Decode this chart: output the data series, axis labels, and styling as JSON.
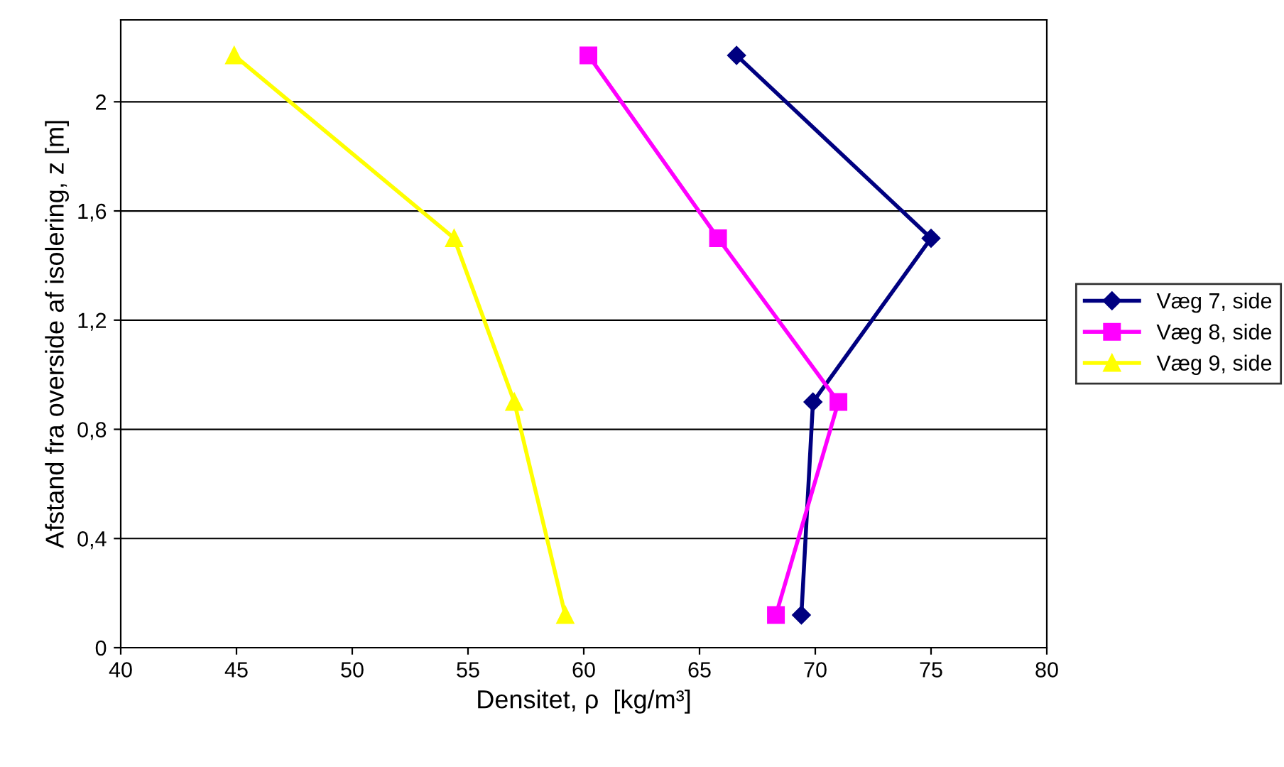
{
  "chart_data": {
    "type": "line",
    "xlabel": "Densitet, ρ  [kg/m³]",
    "ylabel": "Afstand fra overside af isolering, z [m]",
    "xlim": [
      40,
      80
    ],
    "xticks": [
      40,
      45,
      50,
      55,
      60,
      65,
      70,
      75,
      80
    ],
    "ylim": [
      0,
      2.3
    ],
    "yticks": [
      0,
      {
        "value": 0.4,
        "label": "0,4"
      },
      {
        "value": 0.8,
        "label": "0,8"
      },
      {
        "value": 1.2,
        "label": "1,2"
      },
      {
        "value": 1.6,
        "label": "1,6"
      },
      2
    ],
    "grid": "y",
    "legend": "right",
    "series": [
      {
        "name": "Væg 7, side",
        "color": "#000080",
        "marker": "diamond",
        "x": [
          66.6,
          75.0,
          69.9,
          69.4
        ],
        "values": [
          2.17,
          1.5,
          0.9,
          0.12
        ]
      },
      {
        "name": "Væg 8, side",
        "color": "#ff00ff",
        "marker": "square",
        "x": [
          60.2,
          65.8,
          71.0,
          68.3
        ],
        "values": [
          2.17,
          1.5,
          0.9,
          0.12
        ]
      },
      {
        "name": "Væg 9, side",
        "color": "#ffff00",
        "marker": "triangle",
        "x": [
          44.9,
          54.4,
          57.0,
          59.2
        ],
        "values": [
          2.17,
          1.5,
          0.9,
          0.12
        ]
      }
    ]
  }
}
